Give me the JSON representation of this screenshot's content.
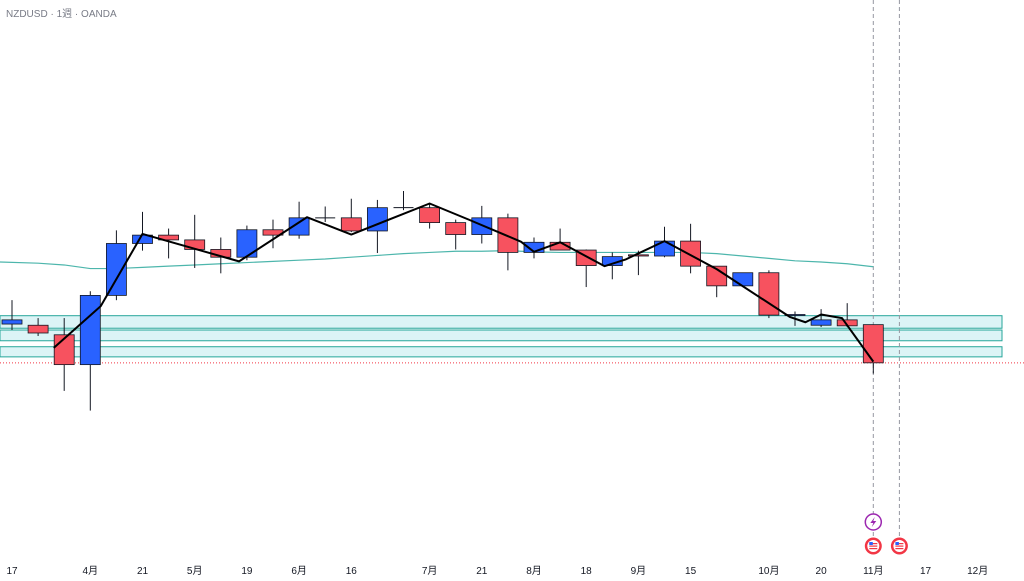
{
  "header": {
    "symbol": "NZDUSD",
    "interval": "1週",
    "source": "OANDA",
    "separator": "·"
  },
  "colors": {
    "up": "#2962ff",
    "down": "#f7525f",
    "ma": "#4db6ac",
    "zigzag": "#000000",
    "zone_fill": "#dcf4f6",
    "zone_stroke": "#26a69a",
    "price_line": "#f23645",
    "event_purple": "#9c27b0",
    "event_red": "#f23645"
  },
  "chart_data": {
    "type": "candlestick",
    "title": "NZDUSD · 1週 · OANDA",
    "ylim": [
      0.5528,
      0.6458
    ],
    "x_ticks": [
      {
        "label": "17",
        "index": 0
      },
      {
        "label": "4月",
        "index": 3
      },
      {
        "label": "21",
        "index": 5
      },
      {
        "label": "5月",
        "index": 7
      },
      {
        "label": "19",
        "index": 9
      },
      {
        "label": "6月",
        "index": 11
      },
      {
        "label": "16",
        "index": 13
      },
      {
        "label": "7月",
        "index": 16
      },
      {
        "label": "21",
        "index": 18
      },
      {
        "label": "8月",
        "index": 20
      },
      {
        "label": "18",
        "index": 22
      },
      {
        "label": "9月",
        "index": 24
      },
      {
        "label": "15",
        "index": 26
      },
      {
        "label": "10月",
        "index": 29
      },
      {
        "label": "20",
        "index": 31
      },
      {
        "label": "11月",
        "index": 33
      },
      {
        "label": "17",
        "index": 35
      },
      {
        "label": "12月",
        "index": 37
      }
    ],
    "candles": [
      {
        "o": 0.5915,
        "h": 0.5955,
        "l": 0.5905,
        "c": 0.5922
      },
      {
        "o": 0.5913,
        "h": 0.5925,
        "l": 0.5895,
        "c": 0.59
      },
      {
        "o": 0.5897,
        "h": 0.5925,
        "l": 0.5803,
        "c": 0.5847
      },
      {
        "o": 0.5847,
        "h": 0.597,
        "l": 0.577,
        "c": 0.5963
      },
      {
        "o": 0.5963,
        "h": 0.6072,
        "l": 0.5955,
        "c": 0.605
      },
      {
        "o": 0.605,
        "h": 0.6103,
        "l": 0.6038,
        "c": 0.6064
      },
      {
        "o": 0.6064,
        "h": 0.6075,
        "l": 0.6025,
        "c": 0.6056
      },
      {
        "o": 0.6056,
        "h": 0.6098,
        "l": 0.6009,
        "c": 0.604
      },
      {
        "o": 0.604,
        "h": 0.606,
        "l": 0.6,
        "c": 0.6027
      },
      {
        "o": 0.6027,
        "h": 0.608,
        "l": 0.6022,
        "c": 0.6073
      },
      {
        "o": 0.6073,
        "h": 0.609,
        "l": 0.6042,
        "c": 0.6064
      },
      {
        "o": 0.6064,
        "h": 0.612,
        "l": 0.6058,
        "c": 0.6093
      },
      {
        "o": 0.6093,
        "h": 0.6112,
        "l": 0.6086,
        "c": 0.6093
      },
      {
        "o": 0.6093,
        "h": 0.6125,
        "l": 0.6069,
        "c": 0.6071
      },
      {
        "o": 0.6071,
        "h": 0.6123,
        "l": 0.6034,
        "c": 0.611
      },
      {
        "o": 0.611,
        "h": 0.6138,
        "l": 0.6106,
        "c": 0.611
      },
      {
        "o": 0.611,
        "h": 0.6117,
        "l": 0.6075,
        "c": 0.6085
      },
      {
        "o": 0.6085,
        "h": 0.609,
        "l": 0.604,
        "c": 0.6065
      },
      {
        "o": 0.6065,
        "h": 0.6113,
        "l": 0.605,
        "c": 0.6093
      },
      {
        "o": 0.6093,
        "h": 0.61,
        "l": 0.6005,
        "c": 0.6035
      },
      {
        "o": 0.6035,
        "h": 0.606,
        "l": 0.6025,
        "c": 0.6052
      },
      {
        "o": 0.6052,
        "h": 0.6075,
        "l": 0.604,
        "c": 0.6039
      },
      {
        "o": 0.6039,
        "h": 0.604,
        "l": 0.5977,
        "c": 0.6013
      },
      {
        "o": 0.6013,
        "h": 0.6035,
        "l": 0.599,
        "c": 0.6028
      },
      {
        "o": 0.6031,
        "h": 0.6038,
        "l": 0.5997,
        "c": 0.6029
      },
      {
        "o": 0.6029,
        "h": 0.6078,
        "l": 0.6027,
        "c": 0.6054
      },
      {
        "o": 0.6054,
        "h": 0.6083,
        "l": 0.6,
        "c": 0.6012
      },
      {
        "o": 0.6012,
        "h": 0.6012,
        "l": 0.596,
        "c": 0.5979
      },
      {
        "o": 0.5979,
        "h": 0.6,
        "l": 0.5978,
        "c": 0.6001
      },
      {
        "o": 0.6001,
        "h": 0.6005,
        "l": 0.5925,
        "c": 0.593
      },
      {
        "o": 0.593,
        "h": 0.5936,
        "l": 0.5912,
        "c": 0.5931
      },
      {
        "o": 0.5913,
        "h": 0.594,
        "l": 0.591,
        "c": 0.5922
      },
      {
        "o": 0.5922,
        "h": 0.595,
        "l": 0.591,
        "c": 0.5912
      },
      {
        "o": 0.5914,
        "h": 0.5914,
        "l": 0.5832,
        "c": 0.585
      }
    ],
    "moving_average": [
      0.6019,
      0.6017,
      0.6014,
      0.6008,
      0.6008,
      0.601,
      0.6012,
      0.6014,
      0.6016,
      0.6018,
      0.602,
      0.6022,
      0.6024,
      0.6027,
      0.603,
      0.6033,
      0.6035,
      0.6037,
      0.6037,
      0.6038,
      0.6036,
      0.6035,
      0.6035,
      0.6035,
      0.6035,
      0.6035,
      0.6035,
      0.6033,
      0.6029,
      0.6025,
      0.6021,
      0.6019,
      0.6016,
      0.6011
    ],
    "zigzag": [
      {
        "i": 1.6,
        "y": 0.5875
      },
      {
        "i": 3.4,
        "y": 0.5945
      },
      {
        "i": 5.0,
        "y": 0.6066
      },
      {
        "i": 8.7,
        "y": 0.602
      },
      {
        "i": 11.3,
        "y": 0.6094
      },
      {
        "i": 13.0,
        "y": 0.6065
      },
      {
        "i": 16.0,
        "y": 0.6117
      },
      {
        "i": 17.5,
        "y": 0.609
      },
      {
        "i": 19.5,
        "y": 0.6053
      },
      {
        "i": 20.0,
        "y": 0.6036
      },
      {
        "i": 21.0,
        "y": 0.6052
      },
      {
        "i": 22.7,
        "y": 0.6012
      },
      {
        "i": 23.5,
        "y": 0.6023
      },
      {
        "i": 25.0,
        "y": 0.6054
      },
      {
        "i": 27.0,
        "y": 0.6007
      },
      {
        "i": 29.8,
        "y": 0.5927
      },
      {
        "i": 30.4,
        "y": 0.5918
      },
      {
        "i": 31.0,
        "y": 0.5931
      },
      {
        "i": 31.8,
        "y": 0.5925
      },
      {
        "i": 33.0,
        "y": 0.5852
      }
    ],
    "zones": [
      {
        "top": 0.5929,
        "bottom": 0.5908
      },
      {
        "top": 0.5905,
        "bottom": 0.5887
      },
      {
        "top": 0.5877,
        "bottom": 0.586
      }
    ],
    "current_price_line": 0.585,
    "vertical_markers": [
      33.0,
      34.0
    ],
    "event_icons": [
      {
        "index": 33.0,
        "row": 0,
        "type": "lightning-icon"
      },
      {
        "index": 33.0,
        "row": 1,
        "type": "us-flag-icon"
      },
      {
        "index": 34.0,
        "row": 1,
        "type": "us-flag-icon"
      }
    ]
  }
}
